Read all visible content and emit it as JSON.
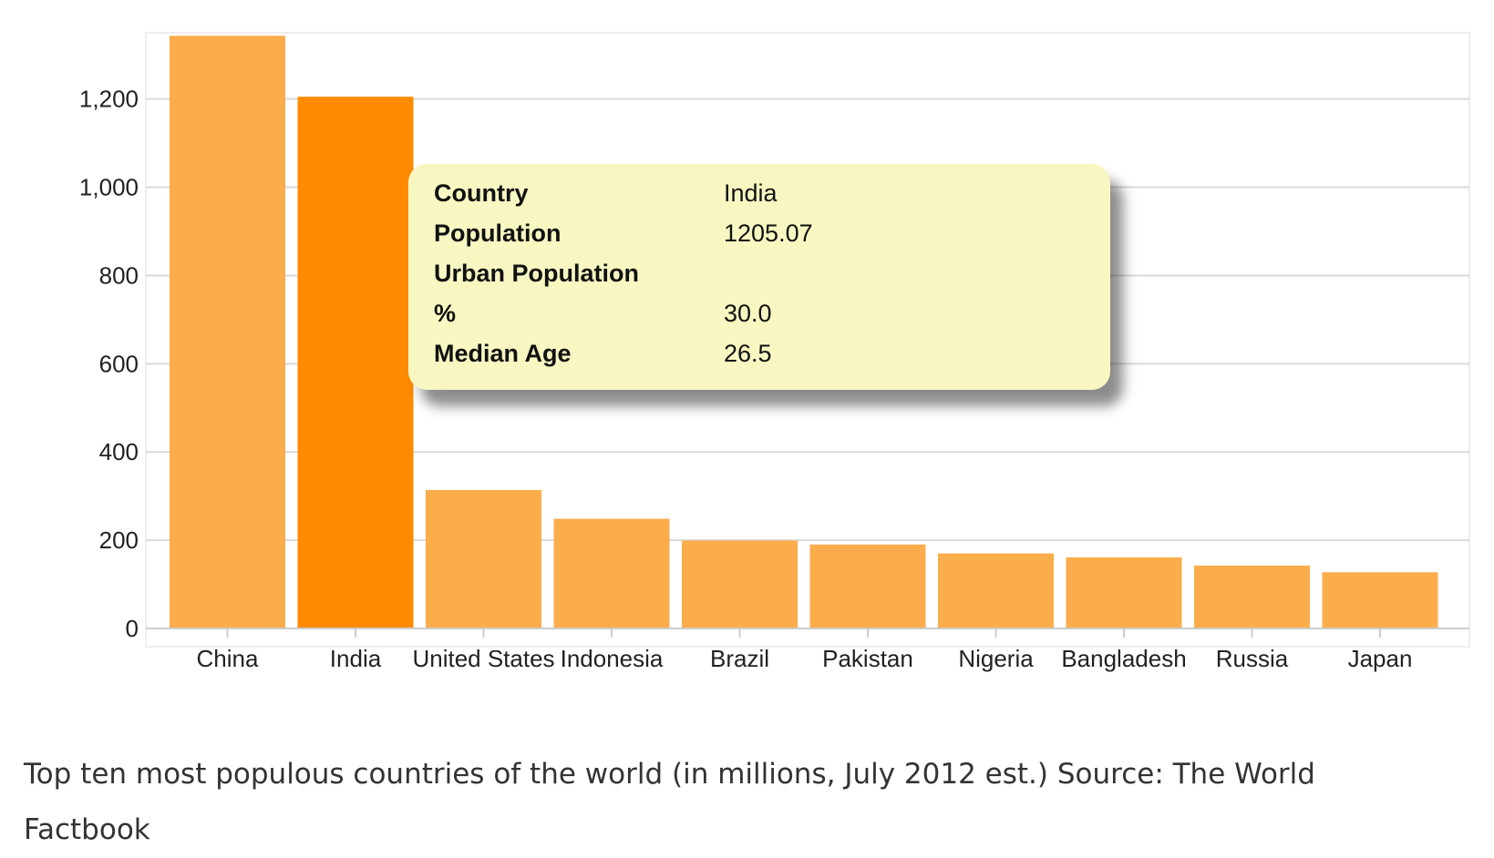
{
  "chart_data": {
    "type": "bar",
    "categories": [
      "China",
      "India",
      "United States",
      "Indonesia",
      "Brazil",
      "Pakistan",
      "Nigeria",
      "Bangladesh",
      "Russia",
      "Japan"
    ],
    "values": [
      1343.2,
      1205.07,
      313.8,
      248.6,
      199.3,
      190.3,
      170.1,
      161.1,
      142.5,
      127.4
    ],
    "y_ticks": [
      "0",
      "200",
      "400",
      "600",
      "800",
      "1,000",
      "1,200"
    ],
    "ylim": [
      0,
      1350
    ],
    "grid": true,
    "highlighted": "India",
    "colors": {
      "bar": "#fbac4b",
      "bar_highlight": "#fd8a00",
      "grid": "#d9d9d9",
      "plot_border": "#eeeeee"
    }
  },
  "tooltip": {
    "rows": [
      {
        "key": "Country",
        "value": "India"
      },
      {
        "key": "Population",
        "value": "1205.07"
      },
      {
        "key": "Urban Population",
        "value": ""
      },
      {
        "key": "%",
        "value": "30.0"
      },
      {
        "key": "Median Age",
        "value": "26.5"
      }
    ],
    "background": "#f8f7c2"
  },
  "caption": "Top ten most populous countries of the world (in millions, July 2012 est.) Source: The World Factbook"
}
